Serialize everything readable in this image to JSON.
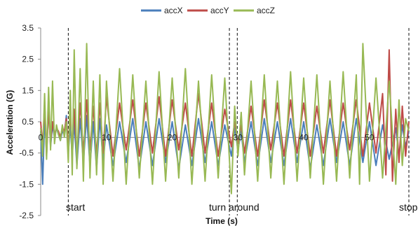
{
  "chart_data": {
    "type": "line",
    "title": "",
    "xlabel": "Time (s)",
    "ylabel": "Acceleration (G)",
    "xlim": [
      0,
      56
    ],
    "ylim": [
      -2.5,
      3.5
    ],
    "yticks": [
      -2.5,
      -1.5,
      -0.5,
      0.5,
      1.5,
      2.5,
      3.5
    ],
    "xticks": [
      0,
      10,
      20,
      30,
      40,
      50
    ],
    "grid": false,
    "legend_position": "top",
    "series": [
      {
        "name": "accX",
        "color": "#4a7ebb",
        "x": [
          0,
          0.3,
          0.6,
          0.9,
          1.2,
          1.5,
          1.8,
          2.1,
          2.4,
          2.7,
          3.0,
          3.3,
          3.6,
          3.9,
          4.2,
          4.5,
          4.8,
          5.1,
          5.5,
          6.0,
          6.5,
          7.0,
          7.5,
          8.0,
          8.5,
          9.0,
          9.5,
          10.0,
          11.0,
          12.0,
          13.0,
          14.0,
          15.0,
          16.0,
          17.0,
          18.0,
          19.0,
          20.0,
          21.0,
          22.0,
          23.0,
          24.0,
          25.0,
          26.0,
          27.0,
          28.0,
          29.0,
          29.5,
          30.0,
          30.5,
          31.0,
          32.0,
          33.0,
          34.0,
          35.0,
          36.0,
          37.0,
          38.0,
          39.0,
          40.0,
          41.0,
          42.0,
          43.0,
          44.0,
          45.0,
          46.0,
          47.0,
          48.0,
          49.0,
          50.0,
          51.0,
          52.0,
          53.0,
          54.0,
          54.5,
          55.0,
          55.5,
          56.0
        ],
        "values": [
          0.2,
          -1.5,
          0.6,
          -0.4,
          1.1,
          -0.3,
          0.4,
          0.0,
          0.3,
          0.1,
          -0.1,
          0.2,
          0.1,
          0.7,
          -0.5,
          0.4,
          -0.6,
          0.5,
          -0.9,
          0.6,
          -0.8,
          0.7,
          -0.9,
          0.5,
          -1.0,
          0.6,
          -0.8,
          0.4,
          -0.9,
          0.5,
          -0.8,
          0.6,
          -1.0,
          0.5,
          -0.9,
          0.6,
          -0.8,
          0.5,
          -1.0,
          0.4,
          -0.9,
          0.6,
          -0.8,
          0.5,
          -0.9,
          0.4,
          -0.6,
          0.3,
          -0.4,
          0.2,
          -0.8,
          0.5,
          -0.9,
          0.6,
          -0.8,
          0.5,
          -0.9,
          0.6,
          -0.8,
          0.5,
          -1.0,
          0.4,
          -0.9,
          0.6,
          -0.8,
          0.5,
          -0.9,
          0.6,
          -0.8,
          0.5,
          -0.9,
          0.4,
          -0.7,
          0.3,
          -0.6,
          0.4,
          -0.3,
          0.2
        ]
      },
      {
        "name": "accY",
        "color": "#be4b48",
        "x": [
          0,
          0.3,
          0.6,
          0.9,
          1.2,
          1.5,
          1.8,
          2.1,
          2.4,
          2.7,
          3.0,
          3.3,
          3.6,
          3.9,
          4.2,
          4.5,
          4.8,
          5.1,
          5.5,
          6.0,
          6.5,
          7.0,
          7.5,
          8.0,
          8.5,
          9.0,
          9.5,
          10.0,
          11.0,
          12.0,
          13.0,
          14.0,
          15.0,
          16.0,
          17.0,
          18.0,
          19.0,
          20.0,
          21.0,
          22.0,
          23.0,
          24.0,
          25.0,
          26.0,
          27.0,
          28.0,
          29.0,
          29.5,
          30.0,
          30.5,
          31.0,
          32.0,
          33.0,
          34.0,
          35.0,
          36.0,
          37.0,
          38.0,
          39.0,
          40.0,
          41.0,
          42.0,
          43.0,
          44.0,
          45.0,
          46.0,
          47.0,
          48.0,
          49.0,
          50.0,
          51.0,
          52.0,
          52.5,
          53.0,
          53.5,
          54.0,
          54.5,
          55.0,
          55.5,
          56.0
        ],
        "values": [
          0.5,
          -0.3,
          1.1,
          -0.6,
          0.9,
          -0.2,
          0.5,
          0.1,
          0.3,
          0.2,
          0.0,
          0.3,
          0.2,
          0.6,
          -0.3,
          0.8,
          -0.4,
          0.9,
          -0.6,
          1.1,
          -0.5,
          1.2,
          -0.4,
          1.0,
          -0.6,
          1.1,
          -0.5,
          1.3,
          -0.6,
          1.1,
          -0.4,
          1.2,
          -0.6,
          1.1,
          -0.5,
          1.3,
          -0.6,
          1.2,
          -0.4,
          1.1,
          -0.6,
          1.4,
          -0.5,
          1.1,
          -0.6,
          0.9,
          -0.3,
          0.5,
          -0.2,
          0.4,
          -0.5,
          1.0,
          -0.6,
          1.2,
          -0.4,
          1.1,
          -0.6,
          1.2,
          -0.5,
          1.1,
          -0.6,
          1.0,
          -0.5,
          1.2,
          -0.6,
          1.1,
          -0.4,
          1.2,
          -0.6,
          1.1,
          -0.5,
          1.4,
          -1.2,
          2.8,
          -1.4,
          0.9,
          -0.8,
          1.0,
          -0.6,
          0.5
        ]
      },
      {
        "name": "accZ",
        "color": "#98b954",
        "x": [
          0,
          0.3,
          0.6,
          0.9,
          1.2,
          1.5,
          1.8,
          2.1,
          2.4,
          2.7,
          3.0,
          3.3,
          3.6,
          3.9,
          4.2,
          4.5,
          4.8,
          5.1,
          5.5,
          6.0,
          6.5,
          7.0,
          7.5,
          8.0,
          8.5,
          9.0,
          9.5,
          10.0,
          11.0,
          12.0,
          13.0,
          14.0,
          15.0,
          16.0,
          17.0,
          18.0,
          19.0,
          20.0,
          21.0,
          22.0,
          23.0,
          24.0,
          25.0,
          26.0,
          27.0,
          28.0,
          29.0,
          29.5,
          30.0,
          30.5,
          31.0,
          32.0,
          33.0,
          34.0,
          35.0,
          36.0,
          37.0,
          38.0,
          39.0,
          40.0,
          41.0,
          42.0,
          43.0,
          44.0,
          45.0,
          46.0,
          47.0,
          48.0,
          48.5,
          49.0,
          50.0,
          51.0,
          52.0,
          53.0,
          54.0,
          54.5,
          55.0,
          55.5,
          56.0
        ],
        "values": [
          0.3,
          -0.6,
          1.4,
          -0.7,
          1.6,
          -0.4,
          1.8,
          -0.2,
          0.4,
          0.1,
          -0.1,
          0.4,
          0.0,
          0.5,
          -0.8,
          1.5,
          -1.2,
          2.8,
          -1.0,
          2.2,
          -1.4,
          3.0,
          -1.3,
          1.8,
          -1.2,
          2.0,
          -1.5,
          1.8,
          -1.4,
          2.2,
          -1.5,
          2.0,
          -1.3,
          1.8,
          -1.5,
          2.1,
          -1.4,
          1.9,
          -1.3,
          2.2,
          -1.5,
          1.8,
          -1.4,
          2.0,
          -1.3,
          1.9,
          -1.8,
          1.0,
          -0.6,
          0.8,
          -1.2,
          1.8,
          -1.4,
          2.0,
          -1.3,
          1.8,
          -1.5,
          2.1,
          -1.4,
          1.9,
          -1.3,
          2.0,
          -1.5,
          1.8,
          -1.4,
          2.1,
          -1.3,
          2.0,
          -1.5,
          3.0,
          -1.4,
          1.9,
          -1.3,
          1.8,
          -1.5,
          1.2,
          -0.9,
          0.6,
          0.2
        ]
      }
    ],
    "annotations": [
      {
        "label": "start",
        "x": 4.2
      },
      {
        "label": "turn around",
        "x": 28.7
      },
      {
        "label": "stop",
        "x": 56.0
      }
    ],
    "extra_marker_x": [
      29.9
    ]
  }
}
